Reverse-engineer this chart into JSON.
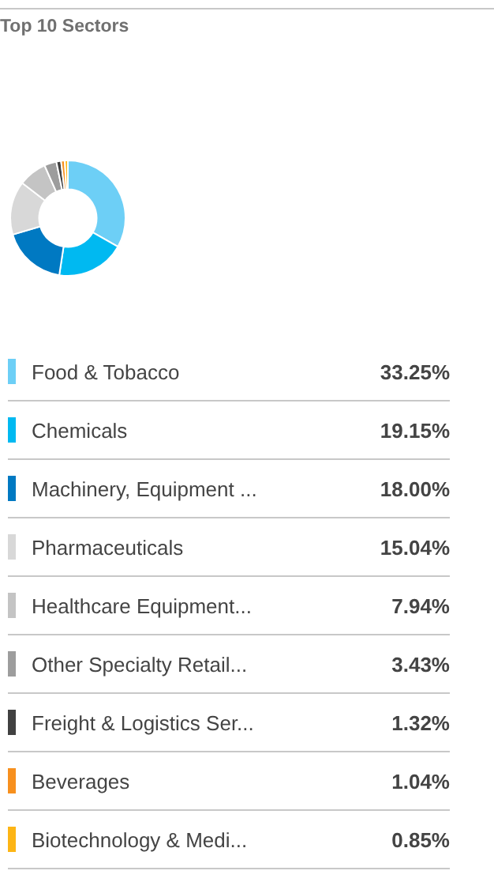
{
  "chart_data": {
    "type": "donut",
    "title": "Top 10 Sectors",
    "categories": [
      "Food & Tobacco",
      "Chemicals",
      "Machinery, Equipment ...",
      "Pharmaceuticals",
      "Healthcare Equipment...",
      "Other Specialty Retail...",
      "Freight & Logistics Ser...",
      "Beverages",
      "Biotechnology & Medi..."
    ],
    "values": [
      33.25,
      19.15,
      18.0,
      15.04,
      7.94,
      3.43,
      1.32,
      1.04,
      0.85
    ],
    "value_labels": [
      "33.25%",
      "19.15%",
      "18.00%",
      "15.04%",
      "7.94%",
      "3.43%",
      "1.32%",
      "1.04%",
      "0.85%"
    ],
    "colors": [
      "#6dcff6",
      "#00b9f1",
      "#0079c2",
      "#d8d8d8",
      "#c4c4c4",
      "#9d9d9d",
      "#414141",
      "#f7901e",
      "#fdb515"
    ],
    "legend": "bottom"
  }
}
